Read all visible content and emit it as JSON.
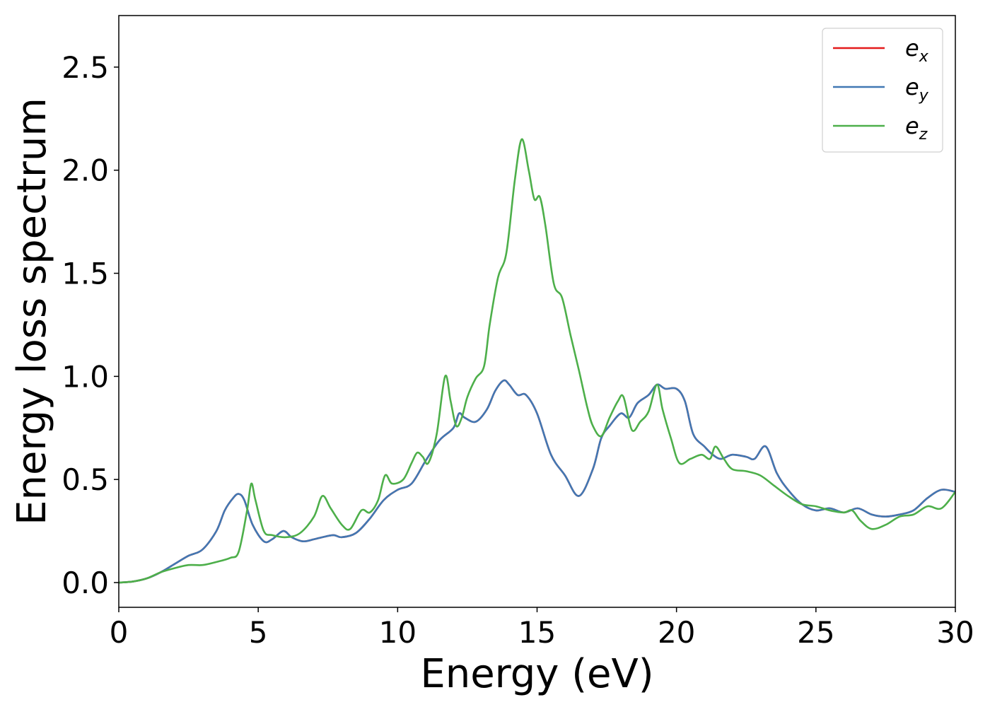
{
  "chart_data": {
    "type": "line",
    "xlabel": "Energy (eV)",
    "ylabel": "Energy loss spectrum",
    "xlim": [
      0,
      30
    ],
    "ylim": [
      -0.12,
      2.75
    ],
    "xticks": [
      0,
      5,
      10,
      15,
      20,
      25,
      30
    ],
    "xtick_labels": [
      "0",
      "5",
      "10",
      "15",
      "20",
      "25",
      "30"
    ],
    "yticks": [
      0.0,
      0.5,
      1.0,
      1.5,
      2.0,
      2.5
    ],
    "ytick_labels": [
      "0.0",
      "0.5",
      "1.0",
      "1.5",
      "2.0",
      "2.5"
    ],
    "grid": false,
    "legend_position": "top-right",
    "series": [
      {
        "name": "e_x",
        "label_base": "e",
        "label_sub": "x",
        "color": "#e41a1c",
        "x": [
          0,
          0.5,
          1,
          1.5,
          2,
          2.5,
          3,
          3.5,
          3.8,
          4.1,
          4.3,
          4.5,
          4.8,
          5.2,
          5.5,
          5.9,
          6.2,
          6.6,
          7,
          7.3,
          7.7,
          8,
          8.5,
          9,
          9.5,
          10,
          10.5,
          11,
          11.5,
          12,
          12.2,
          12.4,
          12.8,
          13.2,
          13.5,
          13.8,
          14,
          14.3,
          14.6,
          15,
          15.5,
          16,
          16.5,
          17,
          17.3,
          17.6,
          18,
          18.3,
          18.6,
          19,
          19.3,
          19.6,
          20,
          20.3,
          20.6,
          21,
          21.3,
          21.6,
          22,
          22.5,
          22.8,
          23.2,
          23.6,
          24,
          24.5,
          25,
          25.5,
          26,
          26.5,
          27,
          27.5,
          28,
          28.5,
          29,
          29.5,
          30
        ],
        "values": [
          0,
          0.005,
          0.02,
          0.05,
          0.09,
          0.13,
          0.16,
          0.25,
          0.35,
          0.41,
          0.43,
          0.4,
          0.28,
          0.2,
          0.21,
          0.25,
          0.22,
          0.2,
          0.21,
          0.22,
          0.23,
          0.22,
          0.24,
          0.31,
          0.4,
          0.45,
          0.48,
          0.59,
          0.69,
          0.75,
          0.82,
          0.8,
          0.78,
          0.84,
          0.93,
          0.98,
          0.96,
          0.91,
          0.91,
          0.82,
          0.62,
          0.52,
          0.42,
          0.55,
          0.7,
          0.76,
          0.82,
          0.8,
          0.87,
          0.91,
          0.96,
          0.94,
          0.94,
          0.88,
          0.72,
          0.66,
          0.62,
          0.6,
          0.62,
          0.61,
          0.6,
          0.66,
          0.53,
          0.45,
          0.38,
          0.35,
          0.36,
          0.34,
          0.36,
          0.33,
          0.32,
          0.33,
          0.35,
          0.41,
          0.45,
          0.44
        ]
      },
      {
        "name": "e_y",
        "label_base": "e",
        "label_sub": "y",
        "color": "#4178b3",
        "x": [
          0,
          0.5,
          1,
          1.5,
          2,
          2.5,
          3,
          3.5,
          3.8,
          4.1,
          4.3,
          4.5,
          4.8,
          5.2,
          5.5,
          5.9,
          6.2,
          6.6,
          7,
          7.3,
          7.7,
          8,
          8.5,
          9,
          9.5,
          10,
          10.5,
          11,
          11.5,
          12,
          12.2,
          12.4,
          12.8,
          13.2,
          13.5,
          13.8,
          14,
          14.3,
          14.6,
          15,
          15.5,
          16,
          16.5,
          17,
          17.3,
          17.6,
          18,
          18.3,
          18.6,
          19,
          19.3,
          19.6,
          20,
          20.3,
          20.6,
          21,
          21.3,
          21.6,
          22,
          22.5,
          22.8,
          23.2,
          23.6,
          24,
          24.5,
          25,
          25.5,
          26,
          26.5,
          27,
          27.5,
          28,
          28.5,
          29,
          29.5,
          30
        ],
        "values": [
          0,
          0.005,
          0.02,
          0.05,
          0.09,
          0.13,
          0.16,
          0.25,
          0.35,
          0.41,
          0.43,
          0.4,
          0.28,
          0.2,
          0.21,
          0.25,
          0.22,
          0.2,
          0.21,
          0.22,
          0.23,
          0.22,
          0.24,
          0.31,
          0.4,
          0.45,
          0.48,
          0.59,
          0.69,
          0.75,
          0.82,
          0.8,
          0.78,
          0.84,
          0.93,
          0.98,
          0.96,
          0.91,
          0.91,
          0.82,
          0.62,
          0.52,
          0.42,
          0.55,
          0.7,
          0.76,
          0.82,
          0.8,
          0.87,
          0.91,
          0.96,
          0.94,
          0.94,
          0.88,
          0.72,
          0.66,
          0.62,
          0.6,
          0.62,
          0.61,
          0.6,
          0.66,
          0.53,
          0.45,
          0.38,
          0.35,
          0.36,
          0.34,
          0.36,
          0.33,
          0.32,
          0.33,
          0.35,
          0.41,
          0.45,
          0.44
        ]
      },
      {
        "name": "e_z",
        "label_base": "e",
        "label_sub": "z",
        "color": "#4daf4a",
        "x": [
          0,
          0.5,
          1,
          1.5,
          2,
          2.5,
          3,
          3.5,
          4,
          4.3,
          4.6,
          4.75,
          4.9,
          5.2,
          5.5,
          6,
          6.5,
          7,
          7.3,
          7.6,
          8,
          8.3,
          8.7,
          9,
          9.3,
          9.55,
          9.8,
          10.2,
          10.5,
          10.7,
          10.9,
          11.1,
          11.4,
          11.7,
          11.9,
          12.1,
          12.3,
          12.5,
          12.8,
          13.1,
          13.3,
          13.6,
          13.9,
          14.2,
          14.45,
          14.7,
          14.9,
          15.1,
          15.3,
          15.6,
          15.9,
          16.2,
          16.5,
          16.8,
          17,
          17.3,
          17.6,
          17.9,
          18.1,
          18.4,
          18.7,
          19,
          19.3,
          19.5,
          19.8,
          20.1,
          20.5,
          20.9,
          21.2,
          21.4,
          21.7,
          22,
          22.5,
          23,
          23.5,
          24,
          24.5,
          25,
          25.5,
          26,
          26.3,
          26.6,
          27,
          27.5,
          28,
          28.5,
          29,
          29.5,
          30
        ],
        "values": [
          0,
          0.005,
          0.02,
          0.05,
          0.07,
          0.085,
          0.085,
          0.1,
          0.12,
          0.15,
          0.35,
          0.48,
          0.4,
          0.25,
          0.23,
          0.22,
          0.24,
          0.32,
          0.42,
          0.36,
          0.28,
          0.26,
          0.35,
          0.34,
          0.4,
          0.52,
          0.48,
          0.5,
          0.58,
          0.63,
          0.61,
          0.58,
          0.72,
          1.0,
          0.88,
          0.76,
          0.8,
          0.9,
          0.99,
          1.05,
          1.25,
          1.48,
          1.6,
          1.95,
          2.15,
          2.0,
          1.86,
          1.87,
          1.73,
          1.45,
          1.38,
          1.2,
          1.03,
          0.85,
          0.76,
          0.71,
          0.8,
          0.88,
          0.9,
          0.74,
          0.78,
          0.83,
          0.96,
          0.84,
          0.7,
          0.58,
          0.6,
          0.62,
          0.6,
          0.66,
          0.6,
          0.55,
          0.54,
          0.52,
          0.47,
          0.42,
          0.38,
          0.37,
          0.35,
          0.34,
          0.35,
          0.3,
          0.26,
          0.28,
          0.32,
          0.33,
          0.37,
          0.36,
          0.44
        ]
      }
    ]
  }
}
